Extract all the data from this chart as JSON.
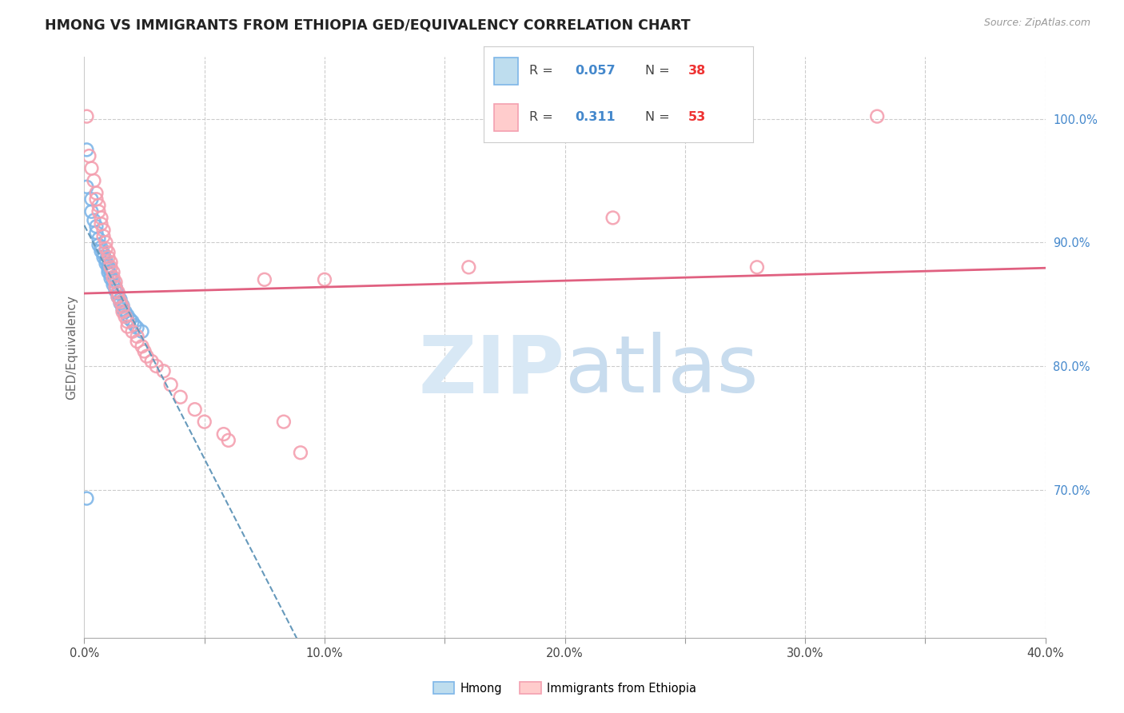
{
  "title": "HMONG VS IMMIGRANTS FROM ETHIOPIA GED/EQUIVALENCY CORRELATION CHART",
  "source": "Source: ZipAtlas.com",
  "ylabel": "GED/Equivalency",
  "xlim": [
    0.0,
    0.4
  ],
  "ylim": [
    0.58,
    1.05
  ],
  "xticks": [
    0.0,
    0.05,
    0.1,
    0.15,
    0.2,
    0.25,
    0.3,
    0.35,
    0.4
  ],
  "xticklabels": [
    "0.0%",
    "",
    "10.0%",
    "",
    "20.0%",
    "",
    "30.0%",
    "",
    "40.0%"
  ],
  "yticks_right": [
    1.0,
    0.9,
    0.8,
    0.7
  ],
  "ytick_labels_right": [
    "100.0%",
    "90.0%",
    "80.0%",
    "70.0%"
  ],
  "hmong_color": "#7EB6E8",
  "ethiopia_color": "#F4A0B0",
  "trend_blue_color": "#6699BB",
  "trend_pink_color": "#E06080",
  "grid_color": "#CCCCCC",
  "title_color": "#222222",
  "source_color": "#999999",
  "right_tick_color": "#4488CC",
  "red_num_color": "#EE3333",
  "hmong_x": [
    0.001,
    0.001,
    0.003,
    0.003,
    0.004,
    0.005,
    0.005,
    0.006,
    0.006,
    0.007,
    0.007,
    0.008,
    0.008,
    0.009,
    0.009,
    0.01,
    0.01,
    0.01,
    0.011,
    0.011,
    0.012,
    0.012,
    0.013,
    0.013,
    0.014,
    0.014,
    0.015,
    0.015,
    0.016,
    0.016,
    0.017,
    0.018,
    0.019,
    0.02,
    0.021,
    0.022,
    0.024,
    0.001
  ],
  "hmong_y": [
    0.975,
    0.945,
    0.935,
    0.925,
    0.918,
    0.913,
    0.908,
    0.903,
    0.898,
    0.896,
    0.893,
    0.891,
    0.888,
    0.886,
    0.883,
    0.881,
    0.879,
    0.876,
    0.874,
    0.871,
    0.869,
    0.866,
    0.864,
    0.861,
    0.859,
    0.856,
    0.854,
    0.851,
    0.849,
    0.846,
    0.844,
    0.841,
    0.838,
    0.836,
    0.833,
    0.831,
    0.828,
    0.693
  ],
  "ethiopia_x": [
    0.001,
    0.002,
    0.003,
    0.004,
    0.005,
    0.005,
    0.006,
    0.006,
    0.007,
    0.007,
    0.008,
    0.008,
    0.009,
    0.009,
    0.01,
    0.01,
    0.011,
    0.011,
    0.012,
    0.012,
    0.013,
    0.013,
    0.014,
    0.014,
    0.015,
    0.016,
    0.016,
    0.017,
    0.018,
    0.018,
    0.02,
    0.022,
    0.022,
    0.024,
    0.025,
    0.026,
    0.028,
    0.03,
    0.033,
    0.036,
    0.04,
    0.046,
    0.05,
    0.058,
    0.06,
    0.075,
    0.083,
    0.09,
    0.1,
    0.16,
    0.22,
    0.28,
    0.33
  ],
  "ethiopia_y": [
    1.002,
    0.97,
    0.96,
    0.95,
    0.94,
    0.935,
    0.93,
    0.925,
    0.92,
    0.915,
    0.91,
    0.905,
    0.9,
    0.895,
    0.892,
    0.888,
    0.884,
    0.88,
    0.876,
    0.872,
    0.868,
    0.864,
    0.86,
    0.856,
    0.852,
    0.848,
    0.844,
    0.84,
    0.836,
    0.832,
    0.828,
    0.824,
    0.82,
    0.816,
    0.812,
    0.808,
    0.804,
    0.8,
    0.796,
    0.785,
    0.775,
    0.765,
    0.755,
    0.745,
    0.74,
    0.87,
    0.755,
    0.73,
    0.87,
    0.88,
    0.92,
    0.88,
    1.002
  ],
  "watermark_zip": "ZIP",
  "watermark_atlas": "atlas"
}
